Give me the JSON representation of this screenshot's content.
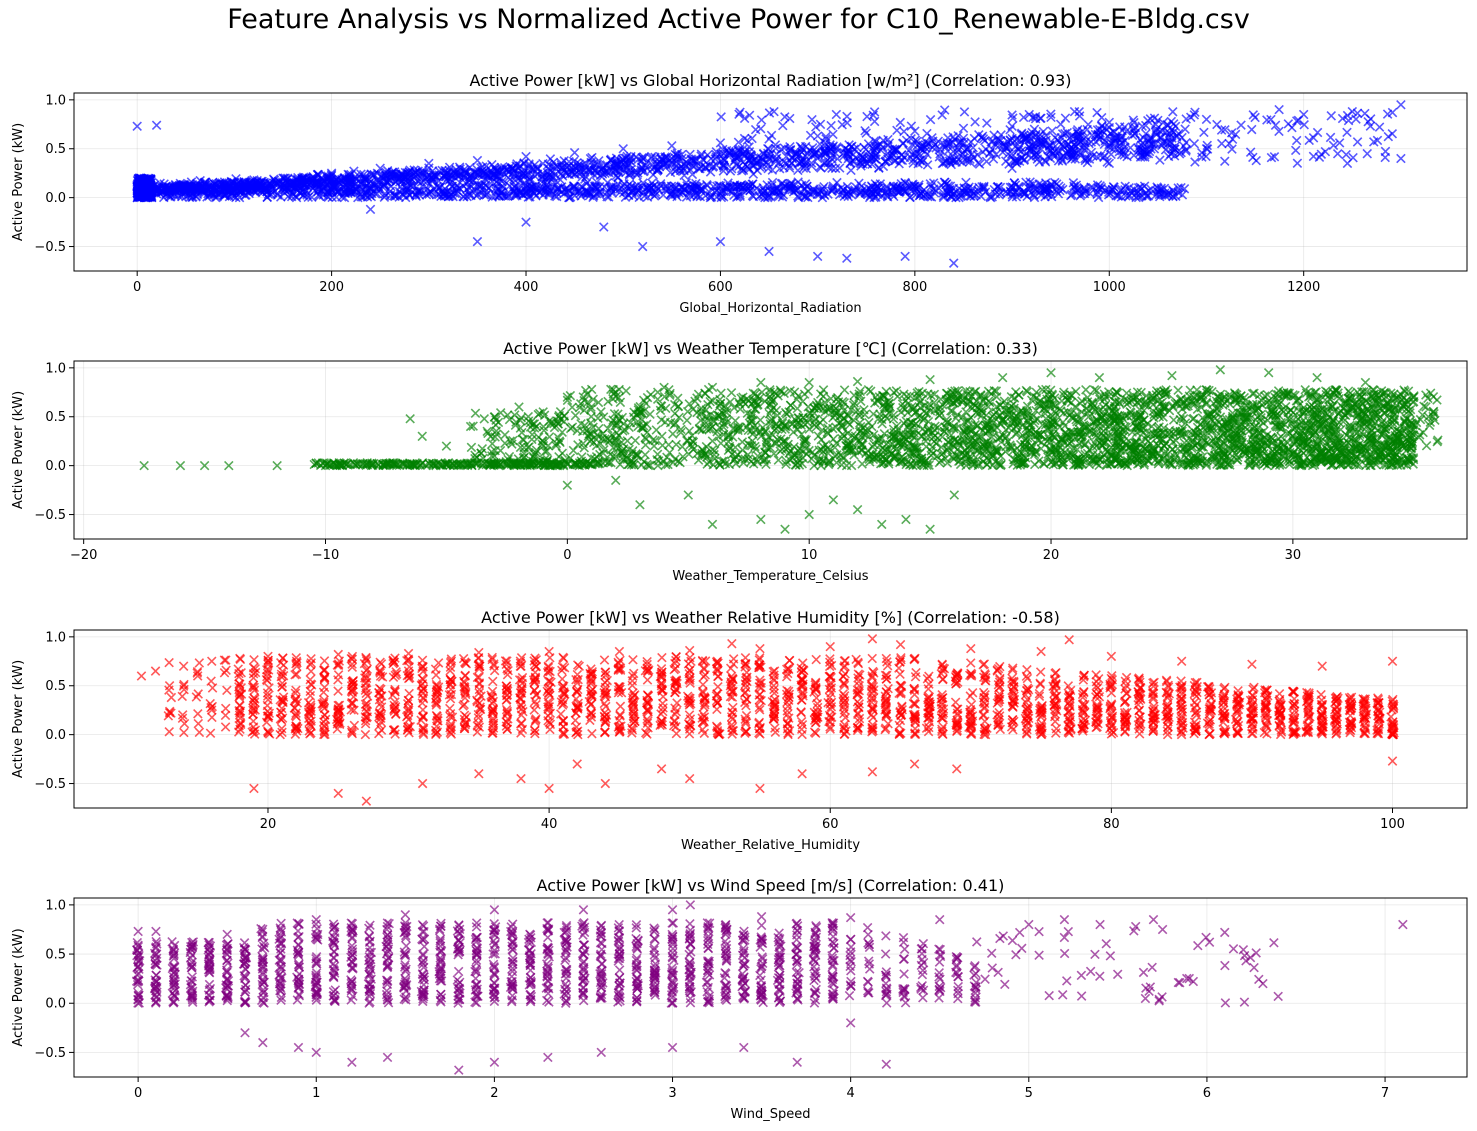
{
  "figure": {
    "suptitle": "Feature Analysis vs Normalized Active Power for C10_Renewable-E-Bldg.csv"
  },
  "chart_data": [
    {
      "type": "scatter",
      "title": "Active Power [kW] vs Global Horizontal Radiation [w/m²] (Correlation: 0.93)",
      "xlabel": "Global_Horizontal_Radiation",
      "ylabel": "Active Power (kW)",
      "color": "#0000ff",
      "marker": "x",
      "grid": true,
      "xlim": [
        -65,
        1368
      ],
      "ylim": [
        -0.75,
        1.07
      ],
      "xticks": [
        0,
        200,
        400,
        600,
        800,
        1000,
        1200
      ],
      "xticklabels": [
        "0",
        "200",
        "400",
        "600",
        "800",
        "1000",
        "1200"
      ],
      "yticks": [
        -0.5,
        0.0,
        0.5,
        1.0
      ],
      "yticklabels": [
        "−0.5",
        "0.0",
        "0.5",
        "1.0"
      ],
      "correlation": 0.93,
      "points": [
        [
          0,
          0.0
        ],
        [
          0,
          0.05
        ],
        [
          0,
          0.12
        ],
        [
          0,
          0.73
        ],
        [
          20,
          0.74
        ],
        [
          50,
          0.1
        ],
        [
          100,
          0.15
        ],
        [
          150,
          0.2
        ],
        [
          200,
          0.25
        ],
        [
          250,
          0.3
        ],
        [
          300,
          0.35
        ],
        [
          350,
          0.38
        ],
        [
          400,
          0.42
        ],
        [
          450,
          0.46
        ],
        [
          500,
          0.5
        ],
        [
          550,
          0.53
        ],
        [
          600,
          0.56
        ],
        [
          650,
          0.6
        ],
        [
          700,
          0.63
        ],
        [
          750,
          0.66
        ],
        [
          800,
          0.68
        ],
        [
          850,
          0.71
        ],
        [
          900,
          0.73
        ],
        [
          950,
          0.75
        ],
        [
          1000,
          0.77
        ],
        [
          1050,
          0.79
        ],
        [
          1100,
          0.8
        ],
        [
          1150,
          0.82
        ],
        [
          1200,
          0.85
        ],
        [
          1250,
          0.88
        ],
        [
          1300,
          0.95
        ],
        [
          1300,
          0.4
        ],
        [
          1245,
          0.35
        ],
        [
          1100,
          0.5
        ],
        [
          1000,
          0.35
        ],
        [
          900,
          0.3
        ],
        [
          800,
          0.45
        ],
        [
          700,
          0.4
        ],
        [
          600,
          0.12
        ],
        [
          500,
          0.12
        ],
        [
          400,
          0.1
        ],
        [
          300,
          0.05
        ],
        [
          240,
          -0.12
        ],
        [
          350,
          -0.45
        ],
        [
          400,
          -0.25
        ],
        [
          480,
          -0.3
        ],
        [
          520,
          -0.5
        ],
        [
          600,
          -0.45
        ],
        [
          650,
          -0.55
        ],
        [
          700,
          -0.6
        ],
        [
          730,
          -0.62
        ],
        [
          790,
          -0.6
        ],
        [
          840,
          -0.67
        ]
      ]
    },
    {
      "type": "scatter",
      "title": "Active Power [kW] vs Weather Temperature [℃] (Correlation: 0.33)",
      "xlabel": "Weather_Temperature_Celsius",
      "ylabel": "Active Power (kW)",
      "color": "#008000",
      "marker": "x",
      "grid": true,
      "xlim": [
        -20.4,
        37.2
      ],
      "ylim": [
        -0.75,
        1.07
      ],
      "xticks": [
        -20,
        -10,
        0,
        10,
        20,
        30
      ],
      "xticklabels": [
        "−20",
        "−10",
        "0",
        "10",
        "20",
        "30"
      ],
      "yticks": [
        -0.5,
        0.0,
        0.5,
        1.0
      ],
      "yticklabels": [
        "−0.5",
        "0.0",
        "0.5",
        "1.0"
      ],
      "correlation": 0.33,
      "points": [
        [
          -17.5,
          0.0
        ],
        [
          -16,
          0.0
        ],
        [
          -15,
          0.0
        ],
        [
          -14,
          0.0
        ],
        [
          -12,
          0.0
        ],
        [
          -10,
          0.0
        ],
        [
          -8,
          0.02
        ],
        [
          -6.5,
          0.48
        ],
        [
          -6,
          0.3
        ],
        [
          -5,
          0.2
        ],
        [
          -4,
          0.4
        ],
        [
          -3,
          0.5
        ],
        [
          -2,
          0.6
        ],
        [
          -1,
          0.55
        ],
        [
          0,
          0.7
        ],
        [
          2,
          0.75
        ],
        [
          4,
          0.8
        ],
        [
          6,
          0.8
        ],
        [
          8,
          0.85
        ],
        [
          10,
          0.85
        ],
        [
          12,
          0.86
        ],
        [
          15,
          0.88
        ],
        [
          18,
          0.9
        ],
        [
          20,
          0.95
        ],
        [
          22,
          0.9
        ],
        [
          25,
          0.92
        ],
        [
          27,
          0.98
        ],
        [
          29,
          0.95
        ],
        [
          31,
          0.9
        ],
        [
          33,
          0.85
        ],
        [
          35,
          0.7
        ],
        [
          35.5,
          0.6
        ],
        [
          0,
          -0.2
        ],
        [
          2,
          -0.15
        ],
        [
          3,
          -0.4
        ],
        [
          5,
          -0.3
        ],
        [
          6,
          -0.6
        ],
        [
          8,
          -0.55
        ],
        [
          9,
          -0.65
        ],
        [
          10,
          -0.5
        ],
        [
          11,
          -0.35
        ],
        [
          12,
          -0.45
        ],
        [
          13,
          -0.6
        ],
        [
          14,
          -0.55
        ],
        [
          15,
          -0.65
        ],
        [
          16,
          -0.3
        ]
      ]
    },
    {
      "type": "scatter",
      "title": "Active Power [kW] vs Weather Relative Humidity [%] (Correlation: -0.58)",
      "xlabel": "Weather_Relative_Humidity",
      "ylabel": "Active Power (kW)",
      "color": "#ff0000",
      "marker": "x",
      "grid": true,
      "xlim": [
        6.2,
        105.3
      ],
      "ylim": [
        -0.75,
        1.07
      ],
      "xticks": [
        20,
        40,
        60,
        80,
        100
      ],
      "xticklabels": [
        "20",
        "40",
        "60",
        "80",
        "100"
      ],
      "yticks": [
        -0.5,
        0.0,
        0.5,
        1.0
      ],
      "yticklabels": [
        "−0.5",
        "0.0",
        "0.5",
        "1.0"
      ],
      "correlation": -0.58,
      "points": [
        [
          11,
          0.6
        ],
        [
          12,
          0.65
        ],
        [
          13,
          0.5
        ],
        [
          14,
          0.7
        ],
        [
          15,
          0.6
        ],
        [
          16,
          0.75
        ],
        [
          18,
          0.78
        ],
        [
          20,
          0.8
        ],
        [
          25,
          0.82
        ],
        [
          30,
          0.83
        ],
        [
          35,
          0.84
        ],
        [
          40,
          0.85
        ],
        [
          45,
          0.85
        ],
        [
          50,
          0.86
        ],
        [
          53,
          0.93
        ],
        [
          55,
          0.88
        ],
        [
          60,
          0.9
        ],
        [
          63,
          0.98
        ],
        [
          65,
          0.92
        ],
        [
          70,
          0.88
        ],
        [
          75,
          0.85
        ],
        [
          77,
          0.97
        ],
        [
          80,
          0.8
        ],
        [
          85,
          0.75
        ],
        [
          90,
          0.72
        ],
        [
          95,
          0.7
        ],
        [
          100,
          0.75
        ],
        [
          100,
          0.0
        ],
        [
          100,
          -0.27
        ],
        [
          19,
          -0.55
        ],
        [
          25,
          -0.6
        ],
        [
          27,
          -0.68
        ],
        [
          31,
          -0.5
        ],
        [
          35,
          -0.4
        ],
        [
          38,
          -0.45
        ],
        [
          40,
          -0.55
        ],
        [
          42,
          -0.3
        ],
        [
          44,
          -0.5
        ],
        [
          48,
          -0.35
        ],
        [
          50,
          -0.45
        ],
        [
          55,
          -0.55
        ],
        [
          58,
          -0.4
        ],
        [
          63,
          -0.38
        ],
        [
          66,
          -0.3
        ],
        [
          69,
          -0.35
        ]
      ]
    },
    {
      "type": "scatter",
      "title": "Active Power [kW] vs Wind Speed [m/s] (Correlation: 0.41)",
      "xlabel": "Wind_Speed",
      "ylabel": "Active Power (kW)",
      "color": "#800080",
      "marker": "x",
      "grid": true,
      "xlim": [
        -0.36,
        7.46
      ],
      "ylim": [
        -0.75,
        1.07
      ],
      "xticks": [
        0,
        1,
        2,
        3,
        4,
        5,
        6,
        7
      ],
      "xticklabels": [
        "0",
        "1",
        "2",
        "3",
        "4",
        "5",
        "6",
        "7"
      ],
      "yticks": [
        -0.5,
        0.0,
        0.5,
        1.0
      ],
      "yticklabels": [
        "−0.5",
        "0.0",
        "0.5",
        "1.0"
      ],
      "correlation": 0.41,
      "points": [
        [
          0,
          0.73
        ],
        [
          0.1,
          0.73
        ],
        [
          0.5,
          0.7
        ],
        [
          1,
          0.85
        ],
        [
          1.5,
          0.9
        ],
        [
          2,
          0.95
        ],
        [
          2.5,
          0.95
        ],
        [
          3,
          0.95
        ],
        [
          3.1,
          1.0
        ],
        [
          3.5,
          0.88
        ],
        [
          4,
          0.87
        ],
        [
          4.5,
          0.85
        ],
        [
          5,
          0.8
        ],
        [
          5.2,
          0.85
        ],
        [
          5.4,
          0.8
        ],
        [
          5.6,
          0.78
        ],
        [
          5.7,
          0.85
        ],
        [
          6.1,
          0.72
        ],
        [
          6.4,
          0.07
        ],
        [
          7.1,
          0.8
        ],
        [
          0.6,
          -0.3
        ],
        [
          0.7,
          -0.4
        ],
        [
          0.9,
          -0.45
        ],
        [
          1,
          -0.5
        ],
        [
          1.2,
          -0.6
        ],
        [
          1.4,
          -0.55
        ],
        [
          1.8,
          -0.68
        ],
        [
          2,
          -0.6
        ],
        [
          2.3,
          -0.55
        ],
        [
          2.6,
          -0.5
        ],
        [
          3,
          -0.45
        ],
        [
          3.4,
          -0.45
        ],
        [
          3.7,
          -0.6
        ],
        [
          4,
          -0.2
        ],
        [
          4.2,
          -0.62
        ]
      ]
    }
  ]
}
